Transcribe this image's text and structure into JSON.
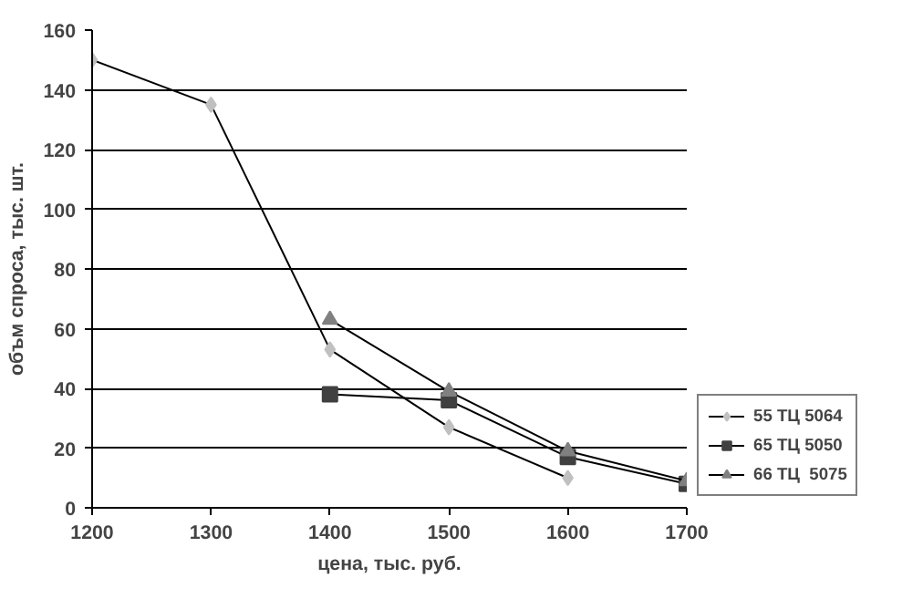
{
  "chart_data": {
    "type": "line",
    "xlabel": "цена, тыс. руб.",
    "ylabel": "объм спроса, тыс. шт.",
    "xlim": [
      1200,
      1700
    ],
    "xticks": [
      1200,
      1300,
      1400,
      1500,
      1600,
      1700
    ],
    "ylim": [
      0,
      160
    ],
    "yticks": [
      0,
      20,
      40,
      60,
      80,
      100,
      120,
      140,
      160
    ],
    "grid": "y",
    "legend": "right",
    "series": [
      {
        "name": "55 ТЦ 5064",
        "color": "#c0c0c0",
        "marker": "diamond",
        "x": [
          1200,
          1300,
          1400,
          1500,
          1600
        ],
        "values": [
          150,
          135,
          53,
          27,
          10
        ]
      },
      {
        "name": "65 ТЦ 5050",
        "color": "#404040",
        "marker": "square",
        "x": [
          1400,
          1500,
          1600,
          1700
        ],
        "values": [
          38,
          36,
          17,
          8
        ]
      },
      {
        "name": "66 ТЦ  5075",
        "color": "#808080",
        "marker": "triangle",
        "x": [
          1400,
          1500,
          1600,
          1700
        ],
        "values": [
          63,
          39,
          19,
          9
        ]
      }
    ]
  }
}
